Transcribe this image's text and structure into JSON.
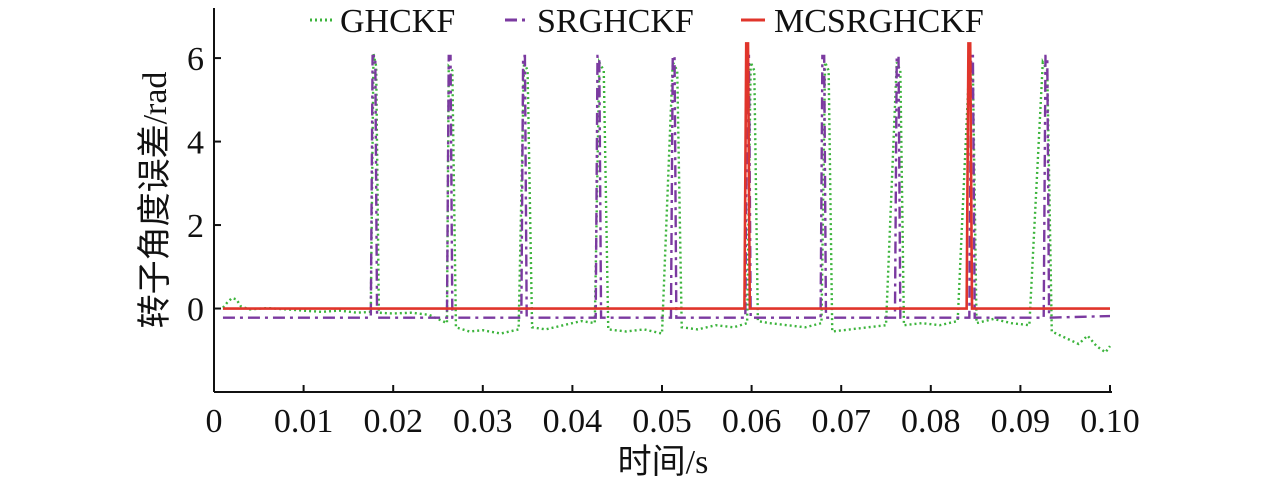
{
  "chart_data": {
    "type": "line",
    "xlabel": "时间/s",
    "ylabel": "转子角度误差/rad",
    "xlim": [
      0,
      0.1
    ],
    "ylim": [
      -2,
      7.2
    ],
    "x_ticks": [
      "0",
      "0.01",
      "0.02",
      "0.03",
      "0.04",
      "0.05",
      "0.06",
      "0.07",
      "0.08",
      "0.09",
      "0.10"
    ],
    "x_tick_values": [
      0,
      0.01,
      0.02,
      0.03,
      0.04,
      0.05,
      0.06,
      0.07,
      0.08,
      0.09,
      0.1
    ],
    "y_ticks": [
      "0",
      "2",
      "4",
      "6"
    ],
    "y_tick_values": [
      0,
      2,
      4,
      6
    ],
    "legend_position": "top",
    "series": [
      {
        "name": "GHCKF",
        "color": "#3cb43c",
        "style": "dotted",
        "points": [
          [
            0.001,
            0.02
          ],
          [
            0.0015,
            0.15
          ],
          [
            0.002,
            0.25
          ],
          [
            0.0025,
            0.22
          ],
          [
            0.003,
            0.05
          ],
          [
            0.004,
            -0.02
          ],
          [
            0.006,
            0.01
          ],
          [
            0.008,
            -0.02
          ],
          [
            0.01,
            -0.05
          ],
          [
            0.012,
            -0.08
          ],
          [
            0.014,
            -0.05
          ],
          [
            0.016,
            -0.1
          ],
          [
            0.0175,
            -0.08
          ],
          [
            0.0178,
            6.1
          ],
          [
            0.0181,
            5.8
          ],
          [
            0.0184,
            -0.1
          ],
          [
            0.02,
            -0.12
          ],
          [
            0.022,
            -0.1
          ],
          [
            0.024,
            -0.15
          ],
          [
            0.026,
            -0.35
          ],
          [
            0.0262,
            5.8
          ],
          [
            0.0266,
            5.7
          ],
          [
            0.027,
            -0.45
          ],
          [
            0.0285,
            -0.55
          ],
          [
            0.03,
            -0.52
          ],
          [
            0.032,
            -0.6
          ],
          [
            0.034,
            -0.5
          ],
          [
            0.0346,
            5.9
          ],
          [
            0.035,
            5.7
          ],
          [
            0.0355,
            -0.45
          ],
          [
            0.037,
            -0.5
          ],
          [
            0.039,
            -0.4
          ],
          [
            0.041,
            -0.3
          ],
          [
            0.0425,
            -0.35
          ],
          [
            0.043,
            5.9
          ],
          [
            0.0435,
            5.7
          ],
          [
            0.044,
            -0.5
          ],
          [
            0.046,
            -0.55
          ],
          [
            0.048,
            -0.5
          ],
          [
            0.05,
            -0.6
          ],
          [
            0.0512,
            5.9
          ],
          [
            0.0517,
            5.7
          ],
          [
            0.0522,
            -0.45
          ],
          [
            0.054,
            -0.5
          ],
          [
            0.056,
            -0.4
          ],
          [
            0.058,
            -0.45
          ],
          [
            0.0595,
            -0.35
          ],
          [
            0.0599,
            5.9
          ],
          [
            0.0603,
            5.7
          ],
          [
            0.0607,
            -0.3
          ],
          [
            0.062,
            -0.35
          ],
          [
            0.064,
            -0.4
          ],
          [
            0.066,
            -0.45
          ],
          [
            0.0678,
            -0.35
          ],
          [
            0.0682,
            5.9
          ],
          [
            0.0686,
            5.7
          ],
          [
            0.069,
            -0.55
          ],
          [
            0.071,
            -0.5
          ],
          [
            0.073,
            -0.45
          ],
          [
            0.075,
            -0.4
          ],
          [
            0.0762,
            5.9
          ],
          [
            0.0766,
            5.7
          ],
          [
            0.077,
            -0.4
          ],
          [
            0.079,
            -0.35
          ],
          [
            0.081,
            -0.4
          ],
          [
            0.083,
            -0.3
          ],
          [
            0.0843,
            5.9
          ],
          [
            0.0847,
            5.7
          ],
          [
            0.0851,
            -0.35
          ],
          [
            0.087,
            -0.25
          ],
          [
            0.089,
            -0.35
          ],
          [
            0.091,
            -0.4
          ],
          [
            0.0925,
            5.9
          ],
          [
            0.093,
            5.7
          ],
          [
            0.0935,
            -0.55
          ],
          [
            0.095,
            -0.7
          ],
          [
            0.0965,
            -0.85
          ],
          [
            0.0975,
            -0.65
          ],
          [
            0.0985,
            -0.9
          ],
          [
            0.0995,
            -1.05
          ],
          [
            0.1,
            -0.9
          ]
        ]
      },
      {
        "name": "SRGHCKF",
        "color": "#7b3aa0",
        "style": "dashdot",
        "points": [
          [
            0.001,
            -0.22
          ],
          [
            0.0175,
            -0.22
          ],
          [
            0.0177,
            6.05
          ],
          [
            0.018,
            6.05
          ],
          [
            0.0182,
            -0.22
          ],
          [
            0.026,
            -0.22
          ],
          [
            0.0262,
            6.05
          ],
          [
            0.0264,
            6.05
          ],
          [
            0.0266,
            -0.22
          ],
          [
            0.0343,
            -0.22
          ],
          [
            0.0345,
            6.05
          ],
          [
            0.0347,
            6.05
          ],
          [
            0.0349,
            -0.22
          ],
          [
            0.0426,
            -0.22
          ],
          [
            0.0428,
            6.05
          ],
          [
            0.043,
            6.05
          ],
          [
            0.0432,
            -0.22
          ],
          [
            0.051,
            -0.22
          ],
          [
            0.0512,
            6.05
          ],
          [
            0.0514,
            6.05
          ],
          [
            0.0516,
            -0.22
          ],
          [
            0.0593,
            -0.22
          ],
          [
            0.0595,
            6.05
          ],
          [
            0.0597,
            6.05
          ],
          [
            0.0599,
            -0.22
          ],
          [
            0.0677,
            -0.22
          ],
          [
            0.0679,
            6.05
          ],
          [
            0.0681,
            6.05
          ],
          [
            0.0683,
            -0.22
          ],
          [
            0.076,
            -0.22
          ],
          [
            0.0762,
            6.05
          ],
          [
            0.0764,
            6.05
          ],
          [
            0.0766,
            -0.22
          ],
          [
            0.0843,
            -0.22
          ],
          [
            0.0845,
            6.05
          ],
          [
            0.0847,
            6.05
          ],
          [
            0.0849,
            -0.22
          ],
          [
            0.0926,
            -0.22
          ],
          [
            0.0928,
            6.05
          ],
          [
            0.093,
            6.05
          ],
          [
            0.0932,
            -0.22
          ],
          [
            0.1,
            -0.18
          ]
        ]
      },
      {
        "name": "MCSRGHCKF",
        "color": "#e0352b",
        "style": "solid",
        "points": [
          [
            0.001,
            0.0
          ],
          [
            0.0592,
            0.0
          ],
          [
            0.0594,
            6.35
          ],
          [
            0.0596,
            6.35
          ],
          [
            0.0598,
            0.0
          ],
          [
            0.084,
            0.0
          ],
          [
            0.0842,
            6.35
          ],
          [
            0.0844,
            6.35
          ],
          [
            0.0846,
            0.0
          ],
          [
            0.1,
            0.0
          ]
        ]
      }
    ]
  }
}
